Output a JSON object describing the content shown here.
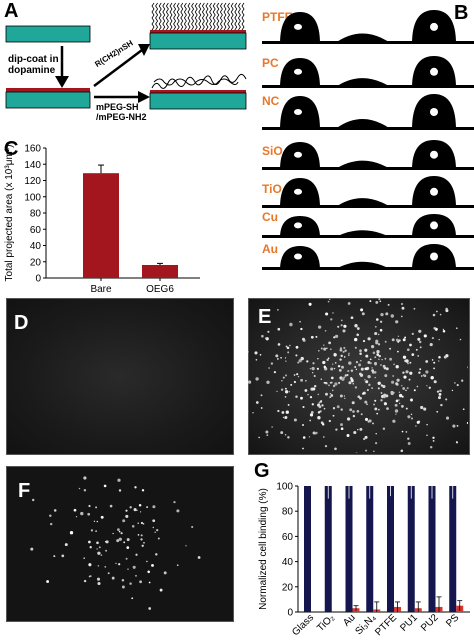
{
  "panels": {
    "A": {
      "label": "A",
      "step1": "dip-coat in",
      "step1b": "dopamine",
      "thiol": "R(CH2)nSH",
      "peg1": "mPEG-SH",
      "peg2": "/mPEG-NH2"
    },
    "B": {
      "label": "B",
      "materials": [
        "PTFE",
        "PC",
        "NC",
        "SiO2",
        "TiO2",
        "Cu",
        "Au"
      ],
      "material_color": "#e8782a"
    },
    "C": {
      "label": "C"
    },
    "D": {
      "label": "D"
    },
    "E": {
      "label": "E"
    },
    "F": {
      "label": "F"
    },
    "G": {
      "label": "G"
    }
  },
  "chart_data": [
    {
      "panel": "C",
      "type": "bar",
      "categories": [
        "Bare",
        "OEG6"
      ],
      "values": [
        129,
        16
      ],
      "errors": [
        10,
        2
      ],
      "ylabel": "Total projected area (x 10³μm²)",
      "ylim": [
        0,
        160
      ],
      "yticks": [
        0,
        20,
        40,
        60,
        80,
        100,
        120,
        140,
        160
      ],
      "bar_color": "#a3161d"
    },
    {
      "panel": "G",
      "type": "bar",
      "categories": [
        "Glass",
        "TiO2",
        "Au",
        "Si3N4",
        "PTFE",
        "PU1",
        "PU2",
        "PS"
      ],
      "category_labels": [
        "Glass",
        "TiO₂",
        "Au",
        "Si₃N₄",
        "PTFE",
        "PU1",
        "PU2",
        "PS"
      ],
      "series": [
        {
          "values": [
            100,
            100,
            100,
            100,
            100,
            100,
            100,
            100
          ],
          "errors": [
            0,
            10,
            10,
            10,
            8,
            10,
            10,
            10
          ],
          "color": "#14164d"
        },
        {
          "values": [
            0,
            0,
            3,
            2,
            4,
            3,
            4,
            5
          ],
          "errors": [
            0,
            0,
            2,
            6,
            4,
            5,
            8,
            4
          ],
          "color": "#d8372f"
        }
      ],
      "ylabel": "Normalized cell binding (%)",
      "ylim": [
        0,
        100
      ],
      "yticks": [
        0,
        20,
        40,
        60,
        80,
        100
      ]
    }
  ]
}
